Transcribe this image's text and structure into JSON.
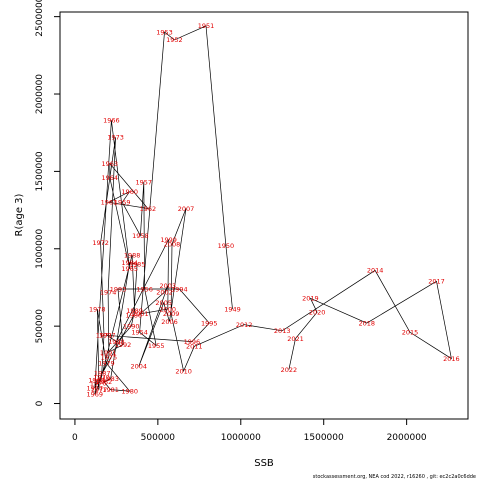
{
  "chart_data": {
    "type": "scatter",
    "xlabel": "SSB",
    "ylabel": "R(age 3)",
    "xlim": [
      -90000,
      2370000
    ],
    "ylim": [
      -100000,
      2530000
    ],
    "x_ticks": [
      0,
      500000,
      1000000,
      1500000,
      2000000
    ],
    "y_ticks": [
      0,
      500000,
      1000000,
      1500000,
      2000000,
      2500000
    ],
    "x_tick_labels": [
      "0",
      "500000",
      "1000000",
      "1500000",
      "2000000"
    ],
    "y_tick_labels": [
      "0",
      "500000",
      "1000000",
      "1500000",
      "2000000",
      "2500000"
    ],
    "label_color": "#e00000",
    "line_color": "#000000",
    "grid": false,
    "points": [
      {
        "year": "1949",
        "x": 950000,
        "y": 610000
      },
      {
        "year": "1950",
        "x": 910000,
        "y": 1020000
      },
      {
        "year": "1951",
        "x": 790000,
        "y": 2440000
      },
      {
        "year": "1952",
        "x": 600000,
        "y": 2350000
      },
      {
        "year": "1953",
        "x": 540000,
        "y": 2400000
      },
      {
        "year": "1954",
        "x": 390000,
        "y": 460000
      },
      {
        "year": "1955",
        "x": 490000,
        "y": 375000
      },
      {
        "year": "1956",
        "x": 420000,
        "y": 740000
      },
      {
        "year": "1957",
        "x": 415000,
        "y": 1430000
      },
      {
        "year": "1958",
        "x": 395000,
        "y": 1085000
      },
      {
        "year": "1959",
        "x": 285000,
        "y": 1300000
      },
      {
        "year": "1960",
        "x": 330000,
        "y": 1370000
      },
      {
        "year": "1961",
        "x": 205000,
        "y": 1300000
      },
      {
        "year": "1962",
        "x": 440000,
        "y": 1260000
      },
      {
        "year": "1963",
        "x": 210000,
        "y": 1550000
      },
      {
        "year": "1964",
        "x": 210000,
        "y": 1460000
      },
      {
        "year": "1965",
        "x": 330000,
        "y": 870000
      },
      {
        "year": "1966",
        "x": 220000,
        "y": 1830000
      },
      {
        "year": "1967",
        "x": 120000,
        "y": 100000
      },
      {
        "year": "1968",
        "x": 130000,
        "y": 150000
      },
      {
        "year": "1969",
        "x": 120000,
        "y": 60000
      },
      {
        "year": "1970",
        "x": 160000,
        "y": 170000
      },
      {
        "year": "1971",
        "x": 175000,
        "y": 440000
      },
      {
        "year": "1972",
        "x": 155000,
        "y": 1040000
      },
      {
        "year": "1973",
        "x": 245000,
        "y": 1720000
      },
      {
        "year": "1974",
        "x": 200000,
        "y": 720000
      },
      {
        "year": "1975",
        "x": 205000,
        "y": 300000
      },
      {
        "year": "1976",
        "x": 140000,
        "y": 130000
      },
      {
        "year": "1977",
        "x": 145000,
        "y": 90000
      },
      {
        "year": "1978",
        "x": 135000,
        "y": 610000
      },
      {
        "year": "1979",
        "x": 190000,
        "y": 260000
      },
      {
        "year": "1980",
        "x": 330000,
        "y": 80000
      },
      {
        "year": "1981",
        "x": 215000,
        "y": 90000
      },
      {
        "year": "1982",
        "x": 175000,
        "y": 140000
      },
      {
        "year": "1983",
        "x": 215000,
        "y": 160000
      },
      {
        "year": "1984",
        "x": 330000,
        "y": 910000
      },
      {
        "year": "1985",
        "x": 375000,
        "y": 900000
      },
      {
        "year": "1986",
        "x": 355000,
        "y": 570000
      },
      {
        "year": "1987",
        "x": 165000,
        "y": 195000
      },
      {
        "year": "1988",
        "x": 345000,
        "y": 960000
      },
      {
        "year": "1989",
        "x": 360000,
        "y": 600000
      },
      {
        "year": "1990",
        "x": 340000,
        "y": 500000
      },
      {
        "year": "1991",
        "x": 200000,
        "y": 330000
      },
      {
        "year": "1992",
        "x": 290000,
        "y": 380000
      },
      {
        "year": "1993",
        "x": 260000,
        "y": 740000
      },
      {
        "year": "1994",
        "x": 630000,
        "y": 740000
      },
      {
        "year": "1995",
        "x": 810000,
        "y": 520000
      },
      {
        "year": "1996",
        "x": 705000,
        "y": 400000
      },
      {
        "year": "1997",
        "x": 195000,
        "y": 440000
      },
      {
        "year": "1998",
        "x": 250000,
        "y": 400000
      },
      {
        "year": "1999",
        "x": 565000,
        "y": 1060000
      },
      {
        "year": "2000",
        "x": 560000,
        "y": 610000
      },
      {
        "year": "2001",
        "x": 395000,
        "y": 580000
      },
      {
        "year": "2002",
        "x": 540000,
        "y": 720000
      },
      {
        "year": "2003",
        "x": 560000,
        "y": 760000
      },
      {
        "year": "2004",
        "x": 385000,
        "y": 240000
      },
      {
        "year": "2005",
        "x": 535000,
        "y": 650000
      },
      {
        "year": "2006",
        "x": 570000,
        "y": 530000
      },
      {
        "year": "2007",
        "x": 670000,
        "y": 1260000
      },
      {
        "year": "2008",
        "x": 585000,
        "y": 1030000
      },
      {
        "year": "2009",
        "x": 580000,
        "y": 580000
      },
      {
        "year": "2010",
        "x": 655000,
        "y": 210000
      },
      {
        "year": "2011",
        "x": 720000,
        "y": 370000
      },
      {
        "year": "2012",
        "x": 1020000,
        "y": 510000
      },
      {
        "year": "2013",
        "x": 1250000,
        "y": 470000
      },
      {
        "year": "2014",
        "x": 1810000,
        "y": 860000
      },
      {
        "year": "2015",
        "x": 2020000,
        "y": 460000
      },
      {
        "year": "2016",
        "x": 2270000,
        "y": 290000
      },
      {
        "year": "2017",
        "x": 2180000,
        "y": 790000
      },
      {
        "year": "2018",
        "x": 1760000,
        "y": 520000
      },
      {
        "year": "2019",
        "x": 1420000,
        "y": 680000
      },
      {
        "year": "2020",
        "x": 1460000,
        "y": 590000
      },
      {
        "year": "2021",
        "x": 1330000,
        "y": 420000
      },
      {
        "year": "2022",
        "x": 1290000,
        "y": 220000
      }
    ]
  },
  "footer": {
    "text": "stockassessment.org, NEA cod 2022, r16260 , git: ec2c2a0c6dde"
  }
}
